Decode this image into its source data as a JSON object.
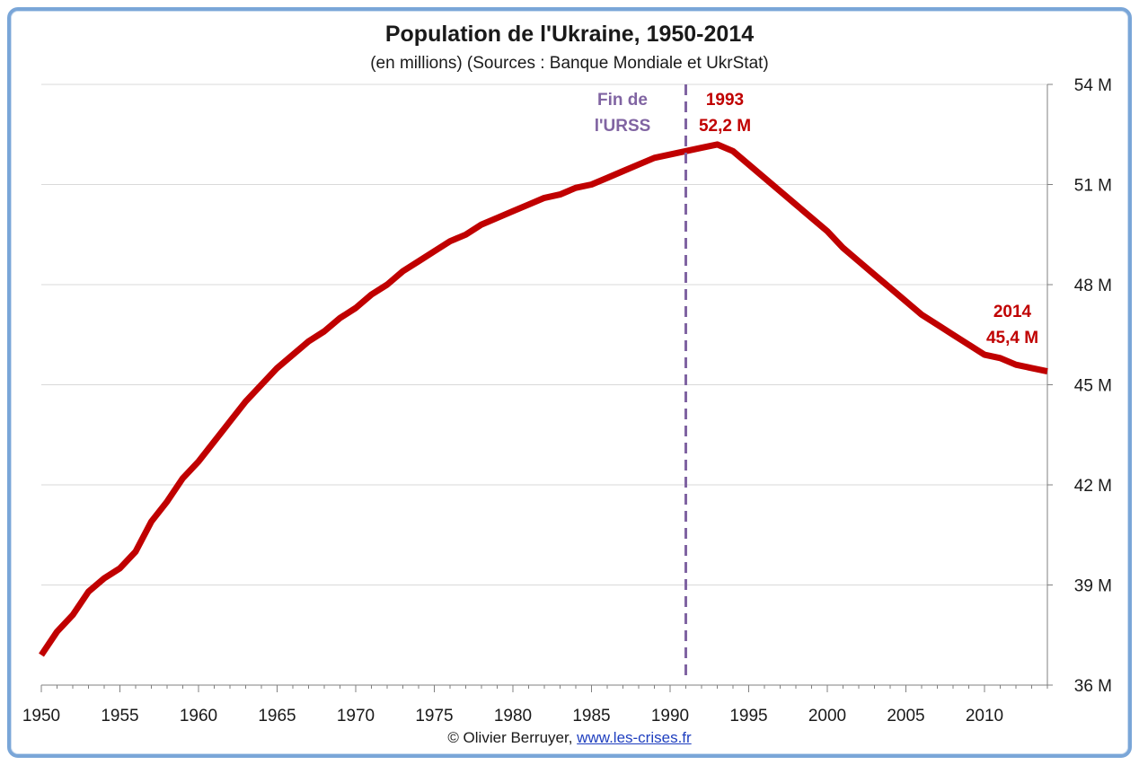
{
  "chart_data": {
    "type": "line",
    "title": "Population de l'Ukraine, 1950-2014",
    "subtitle": "(en millions) (Sources : Banque Mondiale et UkrStat)",
    "xlim": [
      1950,
      2014
    ],
    "ylim": [
      36,
      54
    ],
    "x_ticks": [
      1950,
      1955,
      1960,
      1965,
      1970,
      1975,
      1980,
      1985,
      1990,
      1995,
      2000,
      2005,
      2010
    ],
    "y_ticks": [
      36,
      39,
      42,
      45,
      48,
      51,
      54
    ],
    "y_tick_labels": [
      "36 M",
      "39 M",
      "42 M",
      "45 M",
      "48 M",
      "51 M",
      "54 M"
    ],
    "y_axis_side": "right",
    "grid": "horizontal",
    "series": [
      {
        "color": "#c00000",
        "x": [
          1950,
          1951,
          1952,
          1953,
          1954,
          1955,
          1956,
          1957,
          1958,
          1959,
          1960,
          1961,
          1962,
          1963,
          1964,
          1965,
          1966,
          1967,
          1968,
          1969,
          1970,
          1971,
          1972,
          1973,
          1974,
          1975,
          1976,
          1977,
          1978,
          1979,
          1980,
          1981,
          1982,
          1983,
          1984,
          1985,
          1986,
          1987,
          1988,
          1989,
          1990,
          1991,
          1992,
          1993,
          1994,
          1995,
          1996,
          1997,
          1998,
          1999,
          2000,
          2001,
          2002,
          2003,
          2004,
          2005,
          2006,
          2007,
          2008,
          2009,
          2010,
          2011,
          2012,
          2013,
          2014
        ],
        "y": [
          36.9,
          37.6,
          38.1,
          38.8,
          39.2,
          39.5,
          40.0,
          40.9,
          41.5,
          42.2,
          42.7,
          43.3,
          43.9,
          44.5,
          45.0,
          45.5,
          45.9,
          46.3,
          46.6,
          47.0,
          47.3,
          47.7,
          48.0,
          48.4,
          48.7,
          49.0,
          49.3,
          49.5,
          49.8,
          50.0,
          50.2,
          50.4,
          50.6,
          50.7,
          50.9,
          51.0,
          51.2,
          51.4,
          51.6,
          51.8,
          51.9,
          52.0,
          52.1,
          52.2,
          52.0,
          51.6,
          51.2,
          50.8,
          50.4,
          50.0,
          49.6,
          49.1,
          48.7,
          48.3,
          47.9,
          47.5,
          47.1,
          46.8,
          46.5,
          46.2,
          45.9,
          45.8,
          45.6,
          45.5,
          45.4
        ]
      }
    ],
    "annotations": [
      {
        "lines": [
          "Fin de",
          "l'URSS"
        ],
        "x": 1991,
        "color": "#8064a2",
        "kind": "vertical-dashed-line"
      },
      {
        "lines": [
          "1993",
          "52,2 M"
        ],
        "x": 1993,
        "y": 52.2,
        "color": "#c00000"
      },
      {
        "lines": [
          "2014",
          "45,4 M"
        ],
        "x": 2014,
        "y": 45.4,
        "color": "#c00000"
      }
    ]
  },
  "credit": {
    "prefix": "© Olivier Berruyer,",
    "link": "www.les-crises.fr"
  }
}
